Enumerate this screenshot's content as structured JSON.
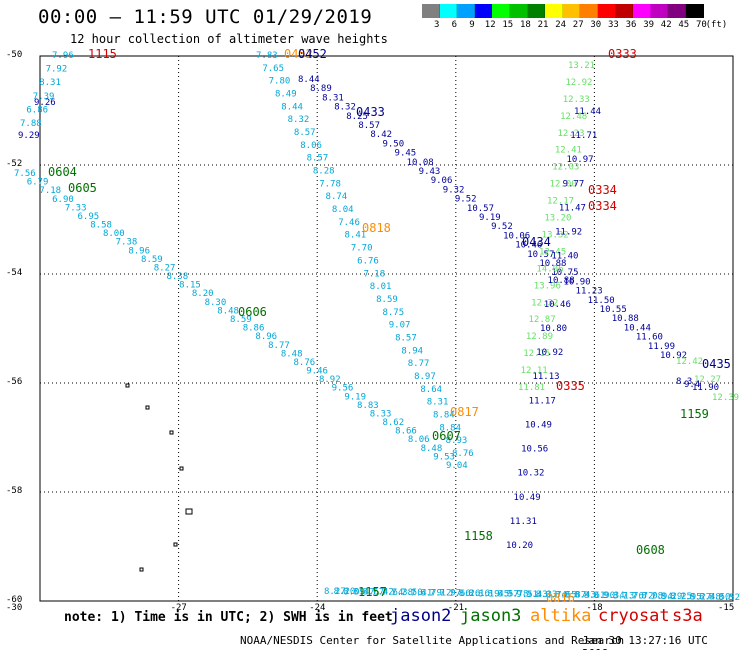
{
  "header": {
    "title": "00:00 – 11:59 UTC 01/29/2019",
    "subtitle": "12 hour collection of altimeter wave heights"
  },
  "legend": {
    "unit": "(ft)",
    "bins": [
      {
        "label": "3",
        "color": "#808080"
      },
      {
        "label": "6",
        "color": "#00ffff"
      },
      {
        "label": "9",
        "color": "#00a0ff"
      },
      {
        "label": "12",
        "color": "#0000ff"
      },
      {
        "label": "15",
        "color": "#00ff00"
      },
      {
        "label": "18",
        "color": "#00c000"
      },
      {
        "label": "21",
        "color": "#008000"
      },
      {
        "label": "24",
        "color": "#ffff00"
      },
      {
        "label": "27",
        "color": "#ffc000"
      },
      {
        "label": "30",
        "color": "#ff8000"
      },
      {
        "label": "33",
        "color": "#ff0000"
      },
      {
        "label": "36",
        "color": "#c00000"
      },
      {
        "label": "39",
        "color": "#ff00ff"
      },
      {
        "label": "42",
        "color": "#c000c0"
      },
      {
        "label": "45",
        "color": "#800080"
      },
      {
        "label": "70",
        "color": "#000000"
      }
    ]
  },
  "axes": {
    "y_ticks": [
      "-50",
      "-52",
      "-54",
      "-56",
      "-58",
      "-60"
    ],
    "x_ticks": [
      "-30",
      "-27",
      "-24",
      "-21",
      "-18",
      "-15"
    ],
    "grid": true
  },
  "colors": {
    "jason2": "#00008b",
    "jason3": "#007000",
    "altika": "#ff8c00",
    "cryosat": "#d40000",
    "s3a": "#d40000",
    "cyan": "#00a8d8",
    "lightgreen": "#66e066",
    "darkblue": "#00009a"
  },
  "passes": {
    "cyan_a": [
      "7.96",
      "7.92",
      "8.31",
      "7.39",
      "6.86",
      "7.88"
    ],
    "blue_a": [
      "9.26",
      "9.29"
    ],
    "cyan_b": [
      "7.56",
      "6.79",
      "7.18",
      "6.90",
      "7.33",
      "6.95",
      "8.58",
      "8.00",
      "7.38",
      "8.96",
      "8.59",
      "8.27",
      "8.38",
      "8.15",
      "8.20",
      "8.30",
      "8.48",
      "8.59",
      "8.86",
      "8.96",
      "8.77",
      "8.48",
      "8.76",
      "9.46",
      "8.92",
      "9.56",
      "9.19",
      "8.83",
      "8.33",
      "8.62",
      "8.66",
      "8.06",
      "8.48",
      "9.53",
      "9.04"
    ],
    "cyan_c": [
      "7.83",
      "7.65",
      "7.80",
      "8.49",
      "8.44",
      "8.32",
      "8.57",
      "8.06",
      "8.57",
      "8.28",
      "7.78",
      "8.74",
      "8.04",
      "7.46",
      "8.41",
      "7.70",
      "6.76",
      "7.18",
      "8.01",
      "8.59",
      "8.75",
      "9.07",
      "8.57",
      "8.94",
      "8.77",
      "8.97",
      "8.64",
      "8.31",
      "8.84",
      "8.84",
      "8.93",
      "8.76"
    ],
    "blue_b": [
      "8.44",
      "8.89",
      "8.31",
      "8.32",
      "8.25",
      "8.57",
      "8.42",
      "9.50",
      "9.45",
      "10.08",
      "9.43",
      "9.06",
      "9.32",
      "9.52",
      "10.57",
      "9.19",
      "9.52",
      "10.06",
      "10.46",
      "10.57",
      "10.88",
      "10.75",
      "10.90",
      "11.23",
      "11.50",
      "10.55",
      "10.88",
      "10.44",
      "11.60",
      "11.99",
      "10.92"
    ],
    "green_a": [
      "13.21",
      "12.92",
      "12.33",
      "12.48",
      "12.23",
      "12.41",
      "12.03",
      "12.00",
      "12.17",
      "13.20",
      "13.32",
      "12.45",
      "14.06",
      "13.96",
      "12.32",
      "12.87",
      "12.89",
      "12.15",
      "12.11",
      "11.81"
    ],
    "blue_c": [
      "11.44",
      "11.71",
      "10.97",
      "9.77",
      "11.47",
      "11.92",
      "11.40",
      "10.88",
      "10.46",
      "10.80",
      "10.92",
      "11.13",
      "11.17",
      "10.49",
      "10.56",
      "10.32",
      "10.49",
      "11.31",
      "10.20"
    ],
    "cyan_d": [
      "8.27",
      "8.20",
      "8.09",
      "8.47",
      "8.67",
      "7.42",
      "7.64",
      "7.38",
      "7.50",
      "7.41",
      "6.79",
      "7.12",
      "7.97",
      "7.66",
      "8.26",
      "8.16",
      "8.19",
      "8.45",
      "8.57",
      "9.78",
      "9.51",
      "9.43",
      "8.33",
      "8.74",
      "8.65",
      "8.87",
      "8.43",
      "8.61",
      "8.90",
      "9.34",
      "8.13",
      "7.76",
      "7.72",
      "8.08",
      "7.94",
      "8.29",
      "8.25",
      "7.95",
      "8.27",
      "8.48",
      "8.50",
      "8.52",
      "8.78"
    ],
    "green_b": [
      "12.42",
      "12.27",
      "12.39"
    ],
    "blue_d": [
      "11.90",
      "9.4",
      "8.3"
    ]
  },
  "labels": [
    {
      "text": "1115",
      "sat": "s3a"
    },
    {
      "text": "0452",
      "sat": "altika"
    },
    {
      "text": "0452",
      "sat": "jason2"
    },
    {
      "text": "0333",
      "sat": "cryosat"
    },
    {
      "text": "0433",
      "sat": "jason2"
    },
    {
      "text": "0604",
      "sat": "jason3"
    },
    {
      "text": "0605",
      "sat": "jason3"
    },
    {
      "text": "0334",
      "sat": "cryosat"
    },
    {
      "text": "0334",
      "sat": "cryosat"
    },
    {
      "text": "0818",
      "sat": "altika"
    },
    {
      "text": "0434",
      "sat": "jason2"
    },
    {
      "text": "0606",
      "sat": "jason3"
    },
    {
      "text": "0435",
      "sat": "jason2"
    },
    {
      "text": "0335",
      "sat": "cryosat"
    },
    {
      "text": "0817",
      "sat": "altika"
    },
    {
      "text": "0607",
      "sat": "jason3"
    },
    {
      "text": "1159",
      "sat": "jason3"
    },
    {
      "text": "1158",
      "sat": "jason3"
    },
    {
      "text": "0608",
      "sat": "jason3"
    },
    {
      "text": "1157",
      "sat": "jason3"
    },
    {
      "text": "0816",
      "sat": "altika"
    }
  ],
  "footer": {
    "note": "note: 1) Time is in UTC; 2) SWH is in feet",
    "legend_items": [
      {
        "text": "jason2",
        "sat": "jason2"
      },
      {
        "text": "jason3",
        "sat": "jason3"
      },
      {
        "text": "altika",
        "sat": "altika"
      },
      {
        "text": "cryosat",
        "sat": "cryosat"
      },
      {
        "text": "s3a",
        "sat": "s3a"
      }
    ],
    "credit": "NOAA/NESDIS Center for Satellite Applications and Research",
    "generated": "Jan 30 13:27:16 UTC 2019"
  }
}
